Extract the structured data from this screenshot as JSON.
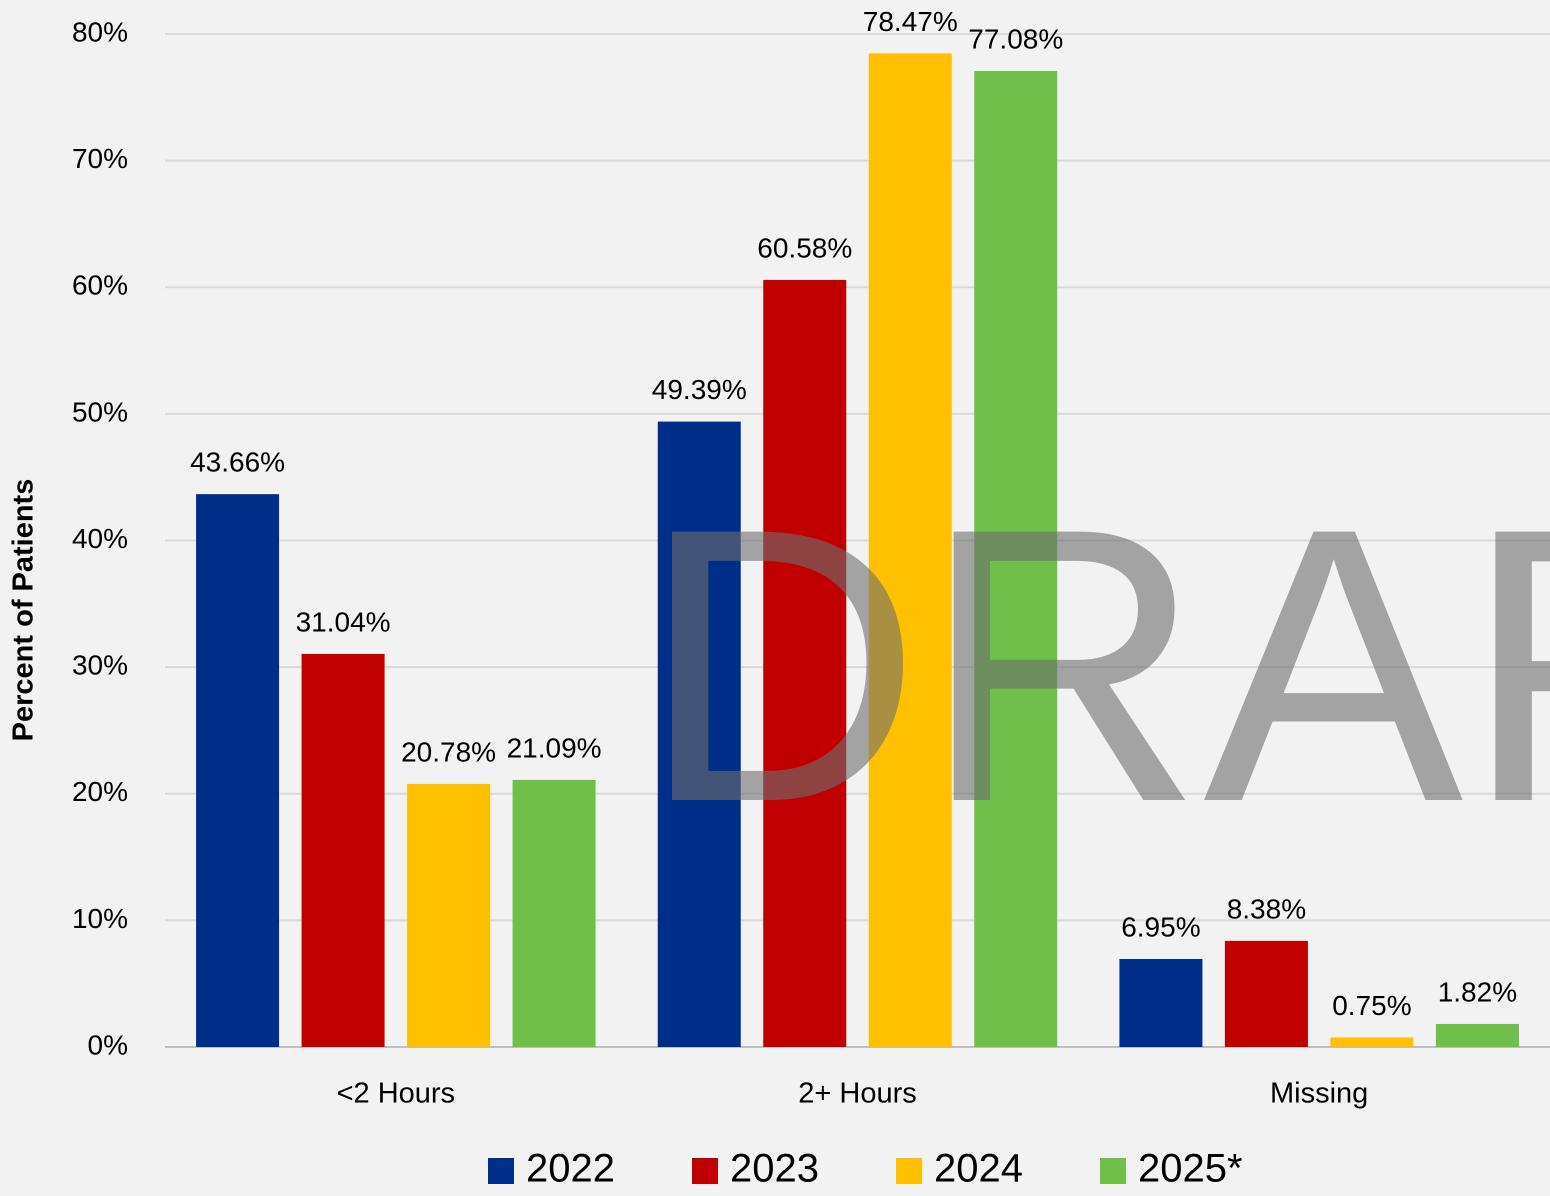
{
  "chart_data": {
    "type": "bar",
    "y_label": "Percent of Patients",
    "watermark": "DRAFT",
    "categories": [
      "<2 Hours",
      "2+ Hours",
      "Missing"
    ],
    "series": [
      {
        "name": "2022",
        "color": "#002d87",
        "values": [
          43.66,
          49.39,
          6.95
        ],
        "value_labels": [
          "43.66%",
          "49.39%",
          "6.95%"
        ]
      },
      {
        "name": "2023",
        "color": "#c00000",
        "values": [
          31.04,
          60.58,
          8.38
        ],
        "value_labels": [
          "31.04%",
          "60.58%",
          "8.38%"
        ]
      },
      {
        "name": "2024",
        "color": "#ffc000",
        "values": [
          20.78,
          78.47,
          0.75
        ],
        "value_labels": [
          "20.78%",
          "78.47%",
          "0.75%"
        ]
      },
      {
        "name": "2025*",
        "color": "#70bf4b",
        "values": [
          21.09,
          77.08,
          1.82
        ],
        "value_labels": [
          "21.09%",
          "77.08%",
          "1.82%"
        ]
      }
    ],
    "ylim": [
      0,
      80
    ],
    "yticks": [
      {
        "value": 0,
        "label": "0%"
      },
      {
        "value": 10,
        "label": "10%"
      },
      {
        "value": 20,
        "label": "20%"
      },
      {
        "value": 30,
        "label": "30%"
      },
      {
        "value": 40,
        "label": "40%"
      },
      {
        "value": 50,
        "label": "50%"
      },
      {
        "value": 60,
        "label": "60%"
      },
      {
        "value": 70,
        "label": "70%"
      },
      {
        "value": 80,
        "label": "80%"
      }
    ],
    "grid": true,
    "legend": "bottom"
  }
}
